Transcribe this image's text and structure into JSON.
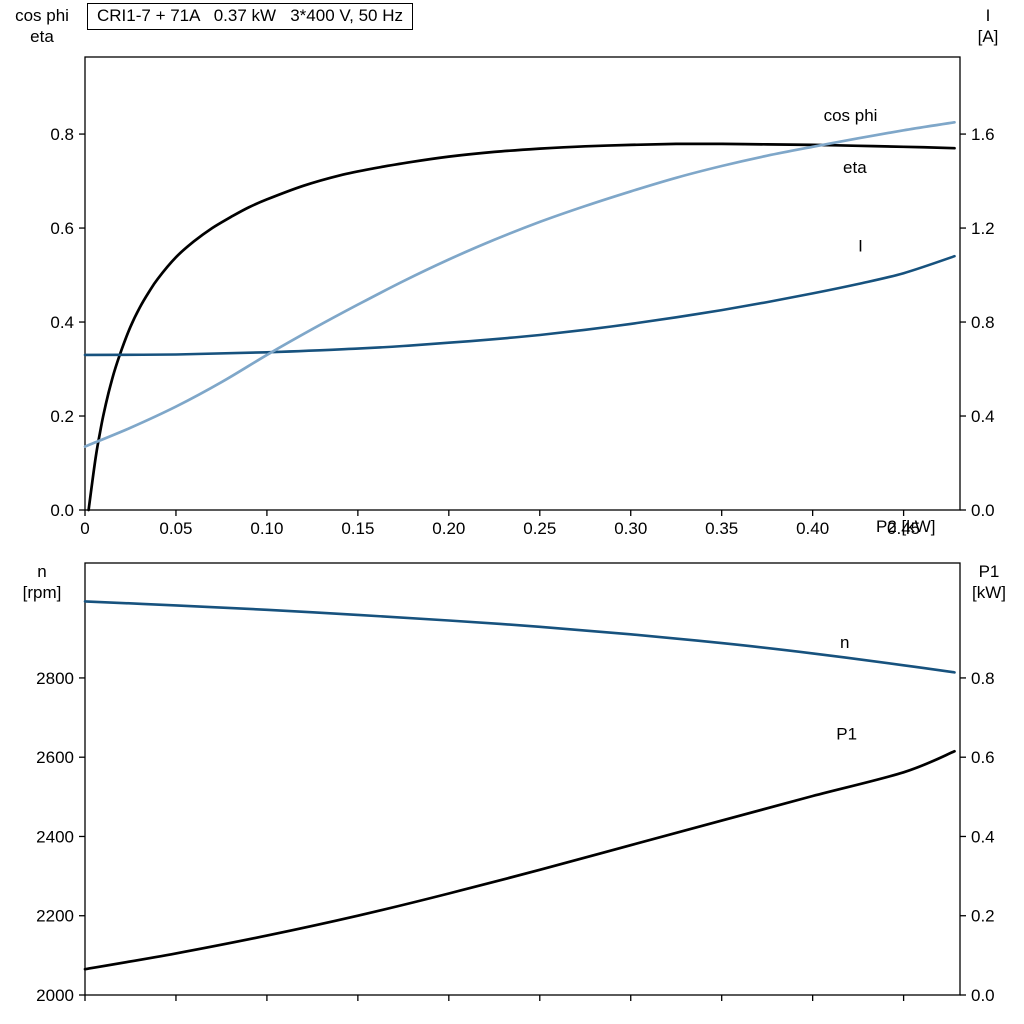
{
  "title_box": {
    "text": "CRI1-7 + 71A   0.37 kW   3*400 V, 50 Hz"
  },
  "colors": {
    "black": "#000000",
    "light_blue": "#7FA7C9",
    "dark_blue": "#17527E"
  },
  "axes_labels": {
    "top_left": [
      "cos phi",
      "eta"
    ],
    "top_right": [
      "I",
      "[A]"
    ],
    "x": "P2 [kW]",
    "bottom_left": [
      "n",
      "[rpm]"
    ],
    "bottom_right": [
      "P1",
      "[kW]"
    ]
  },
  "chart_data": [
    {
      "type": "line",
      "title": "CRI1-7 + 71A 0.37 kW 3*400 V, 50 Hz",
      "xlabel": "P2 [kW]",
      "xlim": [
        0,
        0.481
      ],
      "x_ticks": [
        0,
        0.05,
        0.1,
        0.15,
        0.2,
        0.25,
        0.3,
        0.35,
        0.4,
        0.45
      ],
      "x_tick_labels": [
        "0",
        "0.05",
        "0.10",
        "0.15",
        "0.20",
        "0.25",
        "0.30",
        "0.35",
        "0.40",
        "0.45"
      ],
      "grid": false,
      "y_left": {
        "label": "cos phi / eta",
        "lim": [
          0,
          0.964
        ],
        "ticks": [
          0,
          0.2,
          0.4,
          0.6,
          0.8
        ],
        "tick_labels": [
          "0.0",
          "0.2",
          "0.4",
          "0.6",
          "0.8"
        ]
      },
      "y_right": {
        "label": "I [A]",
        "lim": [
          0,
          1.928
        ],
        "ticks": [
          0,
          0.4,
          0.8,
          1.2,
          1.6
        ],
        "tick_labels": [
          "0.0",
          "0.4",
          "0.8",
          "1.2",
          "1.6"
        ]
      },
      "series": [
        {
          "name": "eta",
          "axis": "left",
          "color_key": "black",
          "width": 2.7,
          "label_pos": [
            0.4167,
            0.717
          ],
          "x": [
            0.002,
            0.004,
            0.006,
            0.008,
            0.01,
            0.013,
            0.016,
            0.02,
            0.025,
            0.03,
            0.035,
            0.04,
            0.05,
            0.06,
            0.07,
            0.08,
            0.09,
            0.1,
            0.12,
            0.14,
            0.16,
            0.18,
            0.2,
            0.225,
            0.25,
            0.275,
            0.3,
            0.325,
            0.35,
            0.375,
            0.4,
            0.425,
            0.45,
            0.478
          ],
          "y": [
            0.0,
            0.06,
            0.115,
            0.16,
            0.2,
            0.25,
            0.293,
            0.34,
            0.39,
            0.43,
            0.463,
            0.492,
            0.538,
            0.572,
            0.6,
            0.623,
            0.644,
            0.661,
            0.69,
            0.712,
            0.728,
            0.741,
            0.752,
            0.762,
            0.769,
            0.774,
            0.777,
            0.779,
            0.779,
            0.778,
            0.777,
            0.775,
            0.773,
            0.77
          ]
        },
        {
          "name": "I",
          "axis": "right",
          "color_key": "dark_blue",
          "width": 2.6,
          "label_pos": [
            0.425,
            1.1
          ],
          "x": [
            0,
            0.05,
            0.1,
            0.15,
            0.175,
            0.2,
            0.225,
            0.25,
            0.275,
            0.3,
            0.325,
            0.35,
            0.375,
            0.4,
            0.425,
            0.45,
            0.478
          ],
          "y": [
            0.66,
            0.662,
            0.671,
            0.687,
            0.698,
            0.712,
            0.727,
            0.745,
            0.767,
            0.792,
            0.82,
            0.851,
            0.885,
            0.922,
            0.962,
            1.008,
            1.08
          ]
        },
        {
          "name": "cos phi",
          "axis": "left",
          "color_key": "light_blue",
          "width": 2.7,
          "label_pos": [
            0.406,
            0.828
          ],
          "x": [
            0,
            0.025,
            0.05,
            0.075,
            0.1,
            0.125,
            0.15,
            0.175,
            0.2,
            0.225,
            0.25,
            0.275,
            0.3,
            0.325,
            0.35,
            0.375,
            0.4,
            0.425,
            0.45,
            0.478
          ],
          "y": [
            0.135,
            0.175,
            0.22,
            0.272,
            0.33,
            0.385,
            0.437,
            0.487,
            0.533,
            0.575,
            0.613,
            0.647,
            0.678,
            0.707,
            0.732,
            0.754,
            0.773,
            0.791,
            0.808,
            0.825
          ]
        }
      ]
    },
    {
      "type": "line",
      "xlabel": "",
      "xlim": [
        0,
        0.481
      ],
      "x_ticks": [
        0,
        0.05,
        0.1,
        0.15,
        0.2,
        0.25,
        0.3,
        0.35,
        0.4,
        0.45
      ],
      "x_tick_labels": null,
      "grid": false,
      "y_left": {
        "label": "n [rpm]",
        "lim": [
          2000,
          3090
        ],
        "ticks": [
          2000,
          2200,
          2400,
          2600,
          2800
        ],
        "tick_labels": [
          "2000",
          "2200",
          "2400",
          "2600",
          "2800"
        ]
      },
      "y_right": {
        "label": "P1 [kW]",
        "lim": [
          0,
          1.09
        ],
        "ticks": [
          0,
          0.2,
          0.4,
          0.6,
          0.8
        ],
        "tick_labels": [
          "0.0",
          "0.2",
          "0.4",
          "0.6",
          "0.8"
        ]
      },
      "series": [
        {
          "name": "n",
          "axis": "left",
          "color_key": "dark_blue",
          "width": 2.6,
          "label_pos": [
            0.415,
            2875
          ],
          "x": [
            0,
            0.05,
            0.1,
            0.15,
            0.2,
            0.25,
            0.3,
            0.35,
            0.4,
            0.45,
            0.478
          ],
          "y": [
            2993,
            2983,
            2972,
            2959,
            2945,
            2929,
            2910,
            2888,
            2862,
            2832,
            2814
          ]
        },
        {
          "name": "P1",
          "axis": "right",
          "color_key": "black",
          "width": 2.7,
          "label_pos": [
            0.413,
            0.645
          ],
          "x": [
            0,
            0.05,
            0.1,
            0.15,
            0.2,
            0.25,
            0.3,
            0.35,
            0.4,
            0.45,
            0.478
          ],
          "y": [
            0.065,
            0.105,
            0.15,
            0.2,
            0.256,
            0.316,
            0.378,
            0.44,
            0.502,
            0.562,
            0.615
          ]
        }
      ]
    }
  ]
}
